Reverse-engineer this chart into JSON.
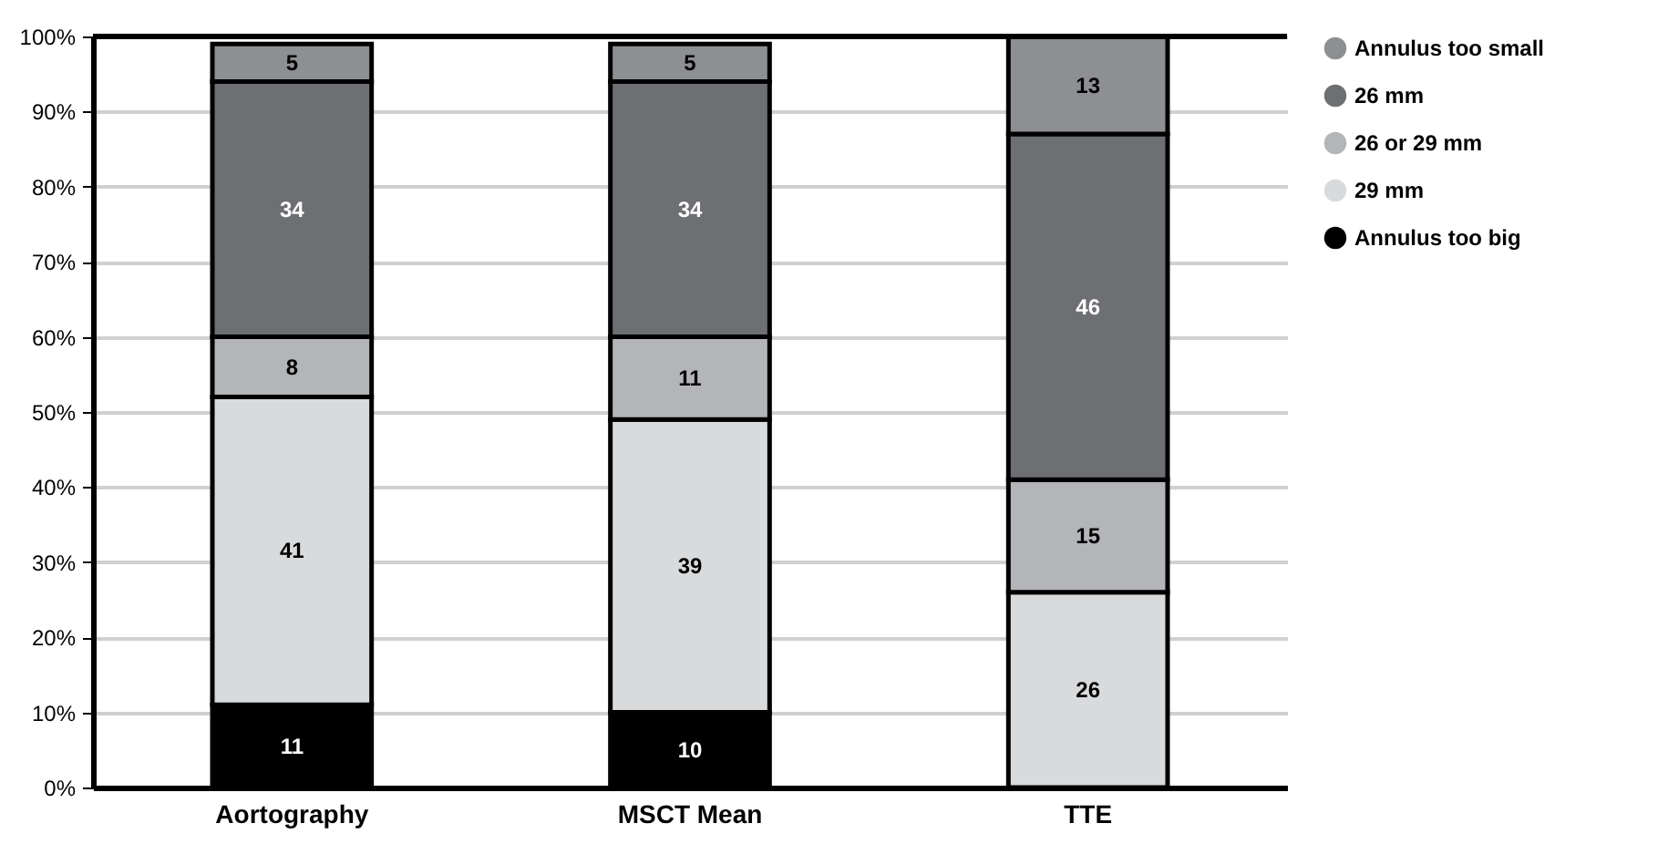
{
  "chart_data": {
    "type": "bar",
    "stacked": true,
    "categories": [
      "Aortography",
      "MSCT Mean",
      "TTE"
    ],
    "series": [
      {
        "name": "Annulus too big",
        "color": "#000000",
        "values": [
          11,
          10,
          null
        ]
      },
      {
        "name": "29 mm",
        "color": "#d9dadc",
        "values": [
          41,
          39,
          26
        ]
      },
      {
        "name": "26 or 29 mm",
        "color": "#b4b5b8",
        "values": [
          8,
          11,
          15
        ]
      },
      {
        "name": "26 mm",
        "color": "#6e6f73",
        "values": [
          34,
          34,
          46
        ]
      },
      {
        "name": "Annulus too small",
        "color": "#8e8f92",
        "values": [
          5,
          5,
          13
        ]
      }
    ],
    "ylim": [
      0,
      100
    ],
    "yticks": [
      {
        "value": 0,
        "label": "0%"
      },
      {
        "value": 10,
        "label": "10%"
      },
      {
        "value": 20,
        "label": "20%"
      },
      {
        "value": 30,
        "label": "30%"
      },
      {
        "value": 40,
        "label": "40%"
      },
      {
        "value": 50,
        "label": "50%"
      },
      {
        "value": 60,
        "label": "60%"
      },
      {
        "value": 70,
        "label": "70%"
      },
      {
        "value": 80,
        "label": "80%"
      },
      {
        "value": 90,
        "label": "90%"
      },
      {
        "value": 100,
        "label": "100%"
      }
    ],
    "grid": "y",
    "legend": "right",
    "marker": "circle",
    "data_labels": true
  }
}
